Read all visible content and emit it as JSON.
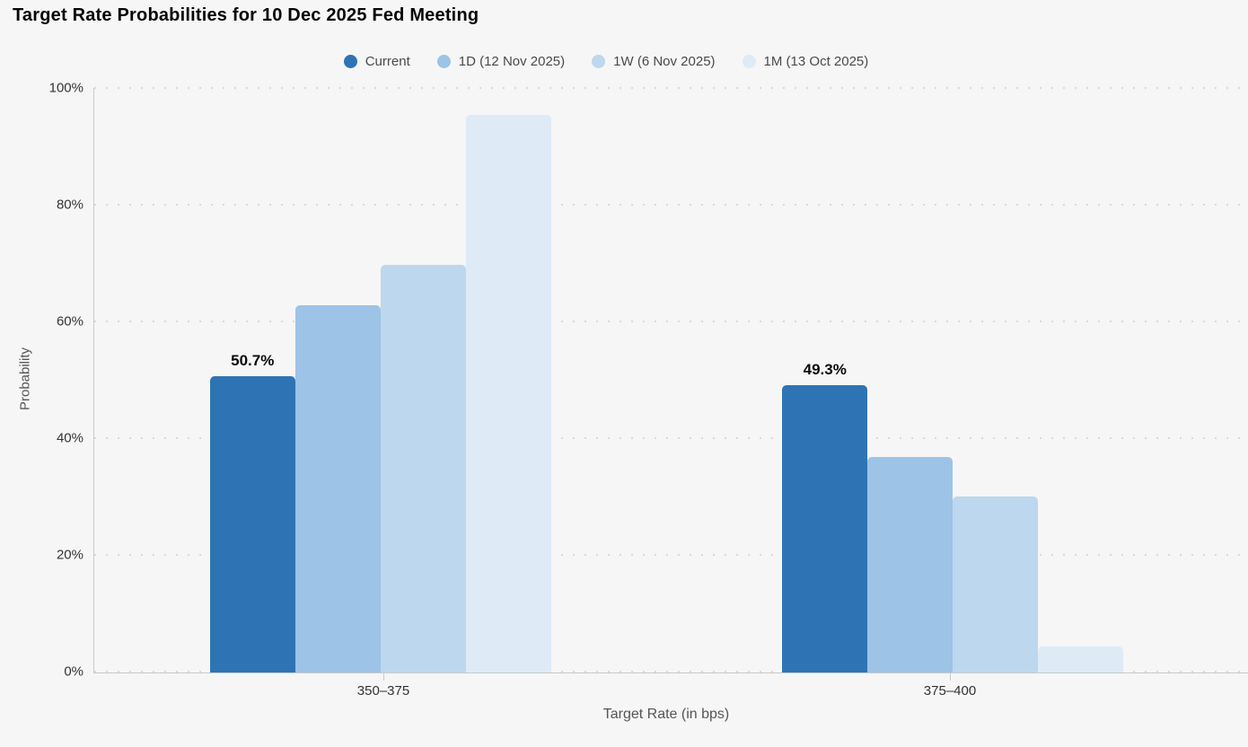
{
  "title": "Target Rate Probabilities for 10 Dec 2025 Fed Meeting",
  "chart_data": {
    "type": "bar",
    "title": "Target Rate Probabilities for 10 Dec 2025 Fed Meeting",
    "xlabel": "Target Rate (in bps)",
    "ylabel": "Probability",
    "categories": [
      "350–375",
      "375–400"
    ],
    "series": [
      {
        "id": "current",
        "name": "Current",
        "color": "#2E74B5",
        "values": [
          50.7,
          49.3
        ],
        "data_labels": [
          "50.7%",
          "49.3%"
        ]
      },
      {
        "id": "1d",
        "name": "1D (12 Nov 2025)",
        "color": "#9DC3E6",
        "values": [
          63.0,
          37.0
        ]
      },
      {
        "id": "1w",
        "name": "1W (6 Nov 2025)",
        "color": "#BDD7EE",
        "values": [
          69.8,
          30.2
        ]
      },
      {
        "id": "1m",
        "name": "1M (13 Oct 2025)",
        "color": "#DEEBF7",
        "values": [
          95.5,
          4.5
        ]
      }
    ],
    "ylim": [
      0,
      100
    ],
    "yticks": [
      "100%",
      "80%",
      "60%",
      "40%",
      "20%",
      "0%"
    ],
    "grid": "horizontal-dotted",
    "legend_position": "top-center",
    "background_color": "#F6F6F6"
  }
}
